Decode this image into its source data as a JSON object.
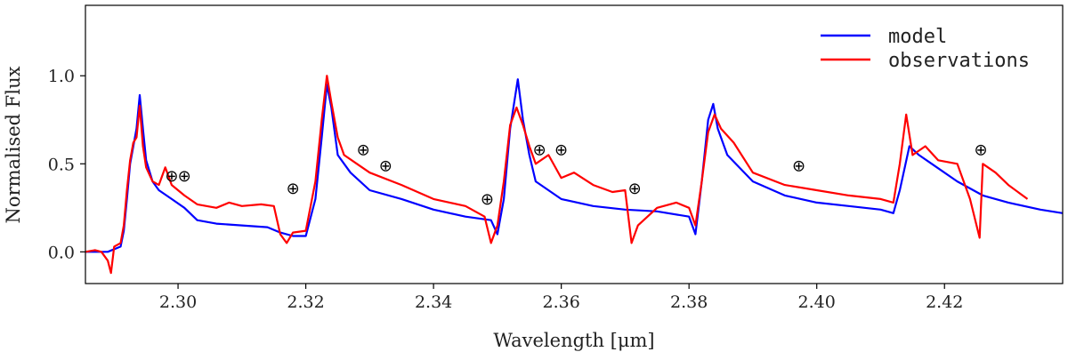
{
  "chart_data": {
    "type": "line",
    "title": "",
    "xlabel": "Wavelength [μm]",
    "ylabel": "Normalised Flux",
    "xlim": [
      2.2855,
      2.4385
    ],
    "ylim": [
      -0.18,
      1.4
    ],
    "xticks": [
      2.3,
      2.32,
      2.34,
      2.36,
      2.38,
      2.4,
      2.42
    ],
    "xtick_labels": [
      "2.30",
      "2.32",
      "2.34",
      "2.36",
      "2.38",
      "2.40",
      "2.42"
    ],
    "yticks": [
      0.0,
      0.5,
      1.0
    ],
    "ytick_labels": [
      "0.0",
      "0.5",
      "1.0"
    ],
    "grid": false,
    "legend_position": "top-right",
    "telluric_marker": "⊕",
    "telluric_markers": [
      {
        "x": 2.299,
        "y": 0.43
      },
      {
        "x": 2.301,
        "y": 0.43
      },
      {
        "x": 2.318,
        "y": 0.36
      },
      {
        "x": 2.329,
        "y": 0.58
      },
      {
        "x": 2.3325,
        "y": 0.49
      },
      {
        "x": 2.3484,
        "y": 0.3
      },
      {
        "x": 2.3566,
        "y": 0.58
      },
      {
        "x": 2.36,
        "y": 0.58
      },
      {
        "x": 2.3715,
        "y": 0.36
      },
      {
        "x": 2.3972,
        "y": 0.49
      },
      {
        "x": 2.4257,
        "y": 0.58
      }
    ],
    "series": [
      {
        "name": "model",
        "color": "#0000ff",
        "points": [
          [
            2.2855,
            0.0
          ],
          [
            2.289,
            0.0
          ],
          [
            2.291,
            0.03
          ],
          [
            2.2915,
            0.12
          ],
          [
            2.292,
            0.3
          ],
          [
            2.2925,
            0.5
          ],
          [
            2.293,
            0.6
          ],
          [
            2.2935,
            0.7
          ],
          [
            2.294,
            0.89
          ],
          [
            2.2945,
            0.7
          ],
          [
            2.295,
            0.52
          ],
          [
            2.296,
            0.4
          ],
          [
            2.297,
            0.35
          ],
          [
            2.299,
            0.3
          ],
          [
            2.301,
            0.25
          ],
          [
            2.303,
            0.18
          ],
          [
            2.306,
            0.16
          ],
          [
            2.31,
            0.15
          ],
          [
            2.314,
            0.14
          ],
          [
            2.316,
            0.11
          ],
          [
            2.318,
            0.09
          ],
          [
            2.32,
            0.09
          ],
          [
            2.3215,
            0.3
          ],
          [
            2.3225,
            0.65
          ],
          [
            2.3233,
            0.95
          ],
          [
            2.324,
            0.82
          ],
          [
            2.325,
            0.55
          ],
          [
            2.327,
            0.45
          ],
          [
            2.33,
            0.35
          ],
          [
            2.335,
            0.3
          ],
          [
            2.34,
            0.24
          ],
          [
            2.345,
            0.2
          ],
          [
            2.349,
            0.18
          ],
          [
            2.35,
            0.1
          ],
          [
            2.351,
            0.3
          ],
          [
            2.352,
            0.7
          ],
          [
            2.3532,
            0.98
          ],
          [
            2.354,
            0.75
          ],
          [
            2.355,
            0.55
          ],
          [
            2.356,
            0.4
          ],
          [
            2.36,
            0.3
          ],
          [
            2.365,
            0.26
          ],
          [
            2.37,
            0.24
          ],
          [
            2.375,
            0.23
          ],
          [
            2.38,
            0.2
          ],
          [
            2.381,
            0.1
          ],
          [
            2.382,
            0.4
          ],
          [
            2.383,
            0.75
          ],
          [
            2.3838,
            0.84
          ],
          [
            2.3845,
            0.7
          ],
          [
            2.386,
            0.55
          ],
          [
            2.39,
            0.4
          ],
          [
            2.395,
            0.32
          ],
          [
            2.4,
            0.28
          ],
          [
            2.405,
            0.26
          ],
          [
            2.41,
            0.24
          ],
          [
            2.412,
            0.22
          ],
          [
            2.413,
            0.35
          ],
          [
            2.4145,
            0.6
          ],
          [
            2.416,
            0.55
          ],
          [
            2.418,
            0.5
          ],
          [
            2.422,
            0.4
          ],
          [
            2.426,
            0.32
          ],
          [
            2.43,
            0.28
          ],
          [
            2.435,
            0.24
          ],
          [
            2.4385,
            0.22
          ]
        ]
      },
      {
        "name": "observations",
        "color": "#ff0000",
        "points": [
          [
            2.2855,
            0.0
          ],
          [
            2.287,
            0.01
          ],
          [
            2.288,
            0.0
          ],
          [
            2.289,
            -0.05
          ],
          [
            2.2895,
            -0.12
          ],
          [
            2.29,
            0.03
          ],
          [
            2.291,
            0.05
          ],
          [
            2.2915,
            0.15
          ],
          [
            2.292,
            0.35
          ],
          [
            2.2925,
            0.52
          ],
          [
            2.293,
            0.62
          ],
          [
            2.2935,
            0.65
          ],
          [
            2.294,
            0.83
          ],
          [
            2.2945,
            0.6
          ],
          [
            2.295,
            0.48
          ],
          [
            2.296,
            0.4
          ],
          [
            2.297,
            0.38
          ],
          [
            2.298,
            0.48
          ],
          [
            2.299,
            0.38
          ],
          [
            2.301,
            0.32
          ],
          [
            2.303,
            0.27
          ],
          [
            2.306,
            0.25
          ],
          [
            2.308,
            0.28
          ],
          [
            2.31,
            0.26
          ],
          [
            2.313,
            0.27
          ],
          [
            2.315,
            0.26
          ],
          [
            2.316,
            0.1
          ],
          [
            2.317,
            0.05
          ],
          [
            2.318,
            0.11
          ],
          [
            2.32,
            0.12
          ],
          [
            2.3215,
            0.4
          ],
          [
            2.3225,
            0.75
          ],
          [
            2.3233,
            1.0
          ],
          [
            2.324,
            0.85
          ],
          [
            2.325,
            0.65
          ],
          [
            2.326,
            0.55
          ],
          [
            2.328,
            0.5
          ],
          [
            2.33,
            0.45
          ],
          [
            2.335,
            0.38
          ],
          [
            2.34,
            0.3
          ],
          [
            2.345,
            0.26
          ],
          [
            2.348,
            0.2
          ],
          [
            2.349,
            0.05
          ],
          [
            2.35,
            0.15
          ],
          [
            2.351,
            0.4
          ],
          [
            2.352,
            0.72
          ],
          [
            2.353,
            0.82
          ],
          [
            2.354,
            0.72
          ],
          [
            2.355,
            0.6
          ],
          [
            2.356,
            0.5
          ],
          [
            2.358,
            0.55
          ],
          [
            2.36,
            0.42
          ],
          [
            2.362,
            0.45
          ],
          [
            2.365,
            0.38
          ],
          [
            2.368,
            0.34
          ],
          [
            2.37,
            0.35
          ],
          [
            2.371,
            0.05
          ],
          [
            2.372,
            0.15
          ],
          [
            2.375,
            0.25
          ],
          [
            2.378,
            0.28
          ],
          [
            2.38,
            0.25
          ],
          [
            2.381,
            0.15
          ],
          [
            2.382,
            0.4
          ],
          [
            2.383,
            0.68
          ],
          [
            2.384,
            0.78
          ],
          [
            2.385,
            0.7
          ],
          [
            2.387,
            0.62
          ],
          [
            2.39,
            0.45
          ],
          [
            2.395,
            0.38
          ],
          [
            2.4,
            0.35
          ],
          [
            2.405,
            0.32
          ],
          [
            2.41,
            0.3
          ],
          [
            2.412,
            0.28
          ],
          [
            2.413,
            0.5
          ],
          [
            2.414,
            0.78
          ],
          [
            2.415,
            0.55
          ],
          [
            2.417,
            0.6
          ],
          [
            2.419,
            0.52
          ],
          [
            2.422,
            0.5
          ],
          [
            2.424,
            0.3
          ],
          [
            2.4255,
            0.08
          ],
          [
            2.426,
            0.5
          ],
          [
            2.428,
            0.45
          ],
          [
            2.43,
            0.38
          ],
          [
            2.433,
            0.3
          ]
        ]
      }
    ]
  }
}
